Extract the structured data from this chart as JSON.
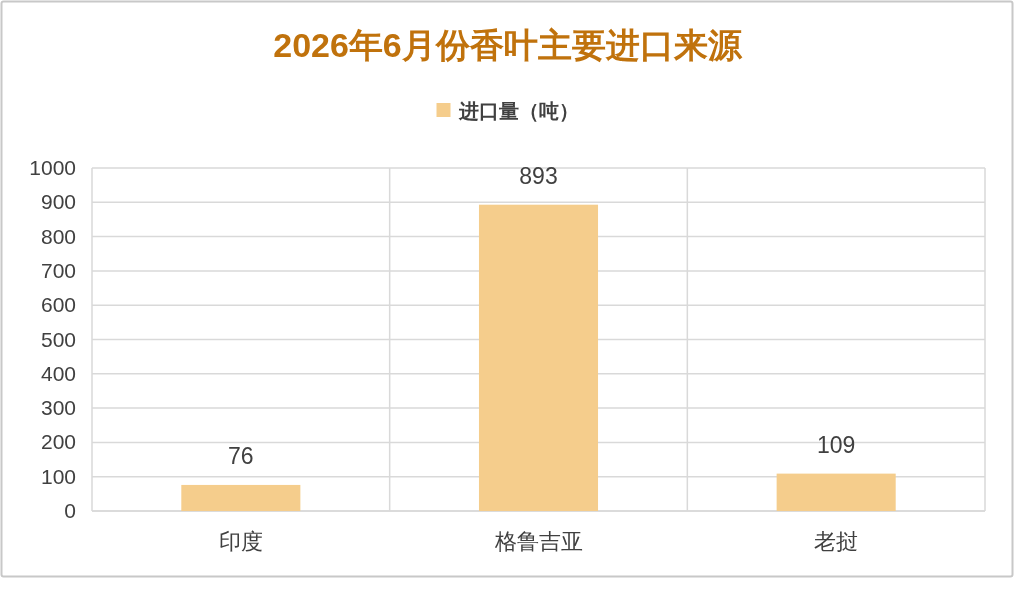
{
  "chart_data": {
    "type": "bar",
    "title": "2026年6月份香叶主要进口来源",
    "categories": [
      "印度",
      "格鲁吉亚",
      "老挝"
    ],
    "series": [
      {
        "name": "进口量（吨）",
        "color": "#f5cd8c",
        "values": [
          76,
          893,
          109
        ]
      }
    ],
    "ylim": [
      0,
      1000
    ],
    "yticks": [
      0,
      100,
      200,
      300,
      400,
      500,
      600,
      700,
      800,
      900,
      1000
    ],
    "grid": true,
    "legend": "top",
    "data_labels": true
  }
}
